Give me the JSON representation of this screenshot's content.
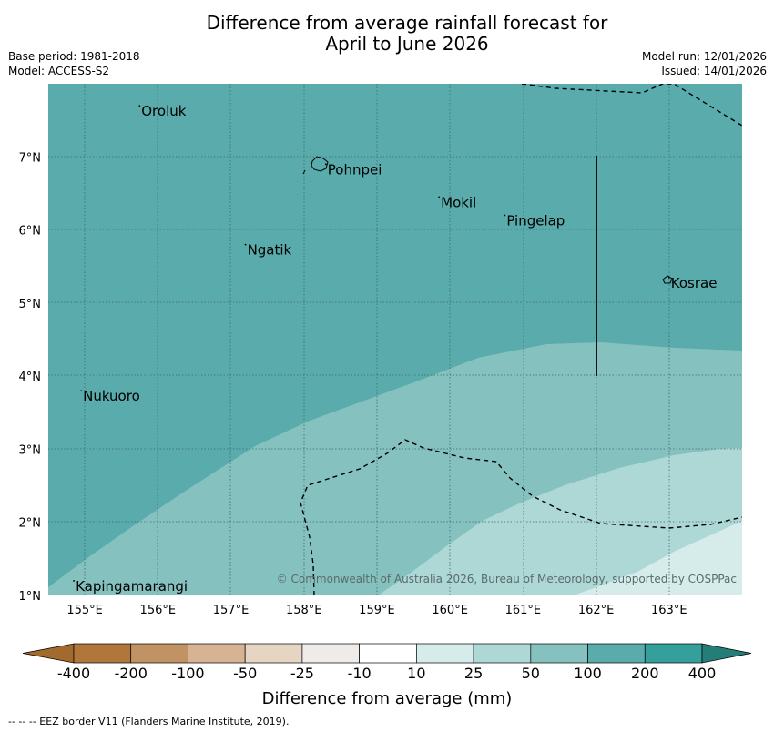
{
  "title": {
    "line1": "Difference from average rainfall forecast for",
    "line2": "April to June 2026"
  },
  "meta": {
    "base_period": "Base period: 1981-2018",
    "model": "Model: ACCESS-S2",
    "model_run": "Model run: 12/01/2026",
    "issued": "Issued: 14/01/2026"
  },
  "axes": {
    "lon_labels": [
      "155°E",
      "156°E",
      "157°E",
      "158°E",
      "159°E",
      "160°E",
      "161°E",
      "162°E",
      "163°E"
    ],
    "lon_values": [
      155,
      156,
      157,
      158,
      159,
      160,
      161,
      162,
      163
    ],
    "lat_labels": [
      "7°N",
      "6°N",
      "5°N",
      "4°N",
      "3°N",
      "2°N",
      "1°N"
    ],
    "lat_values": [
      7,
      6,
      5,
      4,
      3,
      2,
      1
    ],
    "lon_range": [
      154.5,
      164.0
    ],
    "lat_range": [
      1.0,
      8.0
    ]
  },
  "places": [
    {
      "name": "Oroluk",
      "lon": 155.75,
      "lat": 7.65
    },
    {
      "name": "Pohnpei",
      "lon": 158.3,
      "lat": 6.85
    },
    {
      "name": "Mokil",
      "lon": 159.85,
      "lat": 6.4
    },
    {
      "name": "Pingelap",
      "lon": 160.75,
      "lat": 6.15
    },
    {
      "name": "Ngatik",
      "lon": 157.2,
      "lat": 5.75
    },
    {
      "name": "Kosrae",
      "lon": 163.0,
      "lat": 5.3
    },
    {
      "name": "Nukuoro",
      "lon": 154.95,
      "lat": 3.75
    },
    {
      "name": "Kapingamarangi",
      "lon": 154.85,
      "lat": 1.15
    }
  ],
  "credit": "© Commonwealth of Australia 2026, Bureau of Meteorology, supported by COSPPac",
  "colorbar": {
    "labels": [
      "-400",
      "-200",
      "-100",
      "-50",
      "-25",
      "-10",
      "10",
      "25",
      "50",
      "100",
      "200",
      "400"
    ],
    "colors": [
      "#a36a2e",
      "#b1773a",
      "#c19364",
      "#d5b393",
      "#e6d5c2",
      "#eeebe8",
      "#ffffff",
      "#d6eceb",
      "#aed8d6",
      "#85c1bf",
      "#5aabab",
      "#35a09b",
      "#257d77"
    ],
    "title": "Difference from average (mm)"
  },
  "footer": "--  --  -- EEZ border V11 (Flanders Marine Institute, 2019)."
}
